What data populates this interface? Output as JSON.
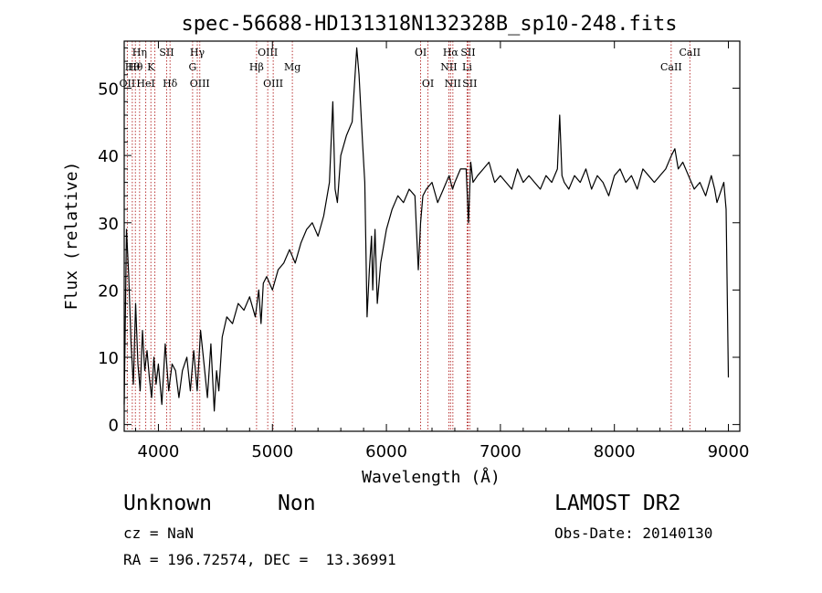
{
  "chart_data": {
    "type": "line",
    "title": "spec-56688-HD131318N132328B_sp10-248.fits",
    "xlabel": "Wavelength (Å)",
    "ylabel": "Flux (relative)",
    "xlim": [
      3700,
      9100
    ],
    "ylim": [
      -1,
      57
    ],
    "xticks": [
      4000,
      5000,
      6000,
      7000,
      8000,
      9000
    ],
    "yticks": [
      0,
      10,
      20,
      30,
      40,
      50
    ],
    "grid": false,
    "series": [
      {
        "x": [
          3700,
          3720,
          3740,
          3760,
          3780,
          3800,
          3820,
          3840,
          3860,
          3880,
          3900,
          3920,
          3940,
          3960,
          3980,
          4000,
          4030,
          4060,
          4090,
          4120,
          4150,
          4180,
          4210,
          4250,
          4280,
          4310,
          4340,
          4370,
          4400,
          4430,
          4460,
          4490,
          4510,
          4530,
          4560,
          4600,
          4650,
          4700,
          4750,
          4800,
          4850,
          4880,
          4900,
          4920,
          4950,
          5000,
          5050,
          5100,
          5150,
          5200,
          5250,
          5300,
          5350,
          5400,
          5450,
          5500,
          5530,
          5550,
          5570,
          5600,
          5650,
          5700,
          5740,
          5760,
          5790,
          5810,
          5830,
          5850,
          5870,
          5880,
          5900,
          5920,
          5950,
          6000,
          6050,
          6100,
          6150,
          6200,
          6250,
          6280,
          6300,
          6320,
          6350,
          6400,
          6450,
          6500,
          6550,
          6580,
          6600,
          6650,
          6700,
          6720,
          6740,
          6760,
          6800,
          6850,
          6900,
          6950,
          7000,
          7050,
          7100,
          7150,
          7200,
          7250,
          7300,
          7350,
          7400,
          7450,
          7500,
          7520,
          7540,
          7560,
          7600,
          7650,
          7700,
          7750,
          7800,
          7850,
          7900,
          7950,
          8000,
          8050,
          8100,
          8150,
          8200,
          8250,
          8300,
          8350,
          8400,
          8450,
          8500,
          8530,
          8560,
          8600,
          8650,
          8700,
          8750,
          8800,
          8850,
          8880,
          8900,
          8920,
          8940,
          8960,
          8980,
          9000
        ],
        "y": [
          3,
          29,
          22,
          12,
          6,
          18,
          9,
          5,
          14,
          8,
          11,
          7,
          4,
          10,
          6,
          9,
          3,
          12,
          5,
          9,
          8,
          4,
          8,
          10,
          5,
          11,
          5,
          14,
          9,
          4,
          12,
          2,
          8,
          5,
          13,
          16,
          15,
          18,
          17,
          19,
          16,
          20,
          15,
          21,
          22,
          20,
          23,
          24,
          26,
          24,
          27,
          29,
          30,
          28,
          31,
          36,
          48,
          35,
          33,
          40,
          43,
          45,
          56,
          52,
          42,
          36,
          16,
          23,
          28,
          20,
          29,
          18,
          24,
          29,
          32,
          34,
          33,
          35,
          34,
          23,
          30,
          34,
          35,
          36,
          33,
          35,
          37,
          35,
          36,
          38,
          38,
          30,
          39,
          36,
          37,
          38,
          39,
          36,
          37,
          36,
          35,
          38,
          36,
          37,
          36,
          35,
          37,
          36,
          38,
          46,
          37,
          36,
          35,
          37,
          36,
          38,
          35,
          37,
          36,
          34,
          37,
          38,
          36,
          37,
          35,
          38,
          37,
          36,
          37,
          38,
          40,
          41,
          38,
          39,
          37,
          35,
          36,
          34,
          37,
          35,
          33,
          34,
          35,
          36,
          32,
          7
        ]
      }
    ],
    "lines": [
      {
        "wave": 3727,
        "label": "OII",
        "row": 5
      },
      {
        "wave": 3771,
        "label": "Hθ",
        "row": 4
      },
      {
        "wave": 3798,
        "label": "Hθ",
        "row": 4
      },
      {
        "wave": 3835,
        "label": "Hη",
        "row": 3
      },
      {
        "wave": 3889,
        "label": "HeI",
        "row": 5
      },
      {
        "wave": 3934,
        "label": "K",
        "row": 4
      },
      {
        "wave": 3969,
        "label": "",
        "row": 0
      },
      {
        "wave": 4072,
        "label": "SII",
        "row": 3
      },
      {
        "wave": 4102,
        "label": "Hδ",
        "row": 5
      },
      {
        "wave": 4300,
        "label": "G",
        "row": 4
      },
      {
        "wave": 4341,
        "label": "Hγ",
        "row": 3
      },
      {
        "wave": 4363,
        "label": "OIII",
        "row": 5
      },
      {
        "wave": 4861,
        "label": "Hβ",
        "row": 4
      },
      {
        "wave": 4959,
        "label": "OIII",
        "row": 3
      },
      {
        "wave": 5007,
        "label": "OIII",
        "row": 5
      },
      {
        "wave": 5175,
        "label": "Mg",
        "row": 4
      },
      {
        "wave": 6300,
        "label": "OI",
        "row": 3
      },
      {
        "wave": 6364,
        "label": "OI",
        "row": 5
      },
      {
        "wave": 6548,
        "label": "NII",
        "row": 4
      },
      {
        "wave": 6563,
        "label": "Hα",
        "row": 3
      },
      {
        "wave": 6583,
        "label": "NII",
        "row": 5
      },
      {
        "wave": 6708,
        "label": "Li",
        "row": 4
      },
      {
        "wave": 6716,
        "label": "SII",
        "row": 3
      },
      {
        "wave": 6731,
        "label": "SII",
        "row": 5
      },
      {
        "wave": 8498,
        "label": "CaII",
        "row": 4
      },
      {
        "wave": 8662,
        "label": "CaII",
        "row": 3
      }
    ]
  },
  "info": {
    "class_text": "Unknown",
    "subclass_text": "Non",
    "survey_text": "LAMOST DR2",
    "cz_text": "cz = NaN",
    "obs_date_text": "Obs-Date: 20140130",
    "coords_text": "RA = 196.72574, DEC =  13.36991"
  },
  "colors": {
    "spectrum": "#000000",
    "line_markers": "#b22222",
    "axes": "#000000"
  }
}
